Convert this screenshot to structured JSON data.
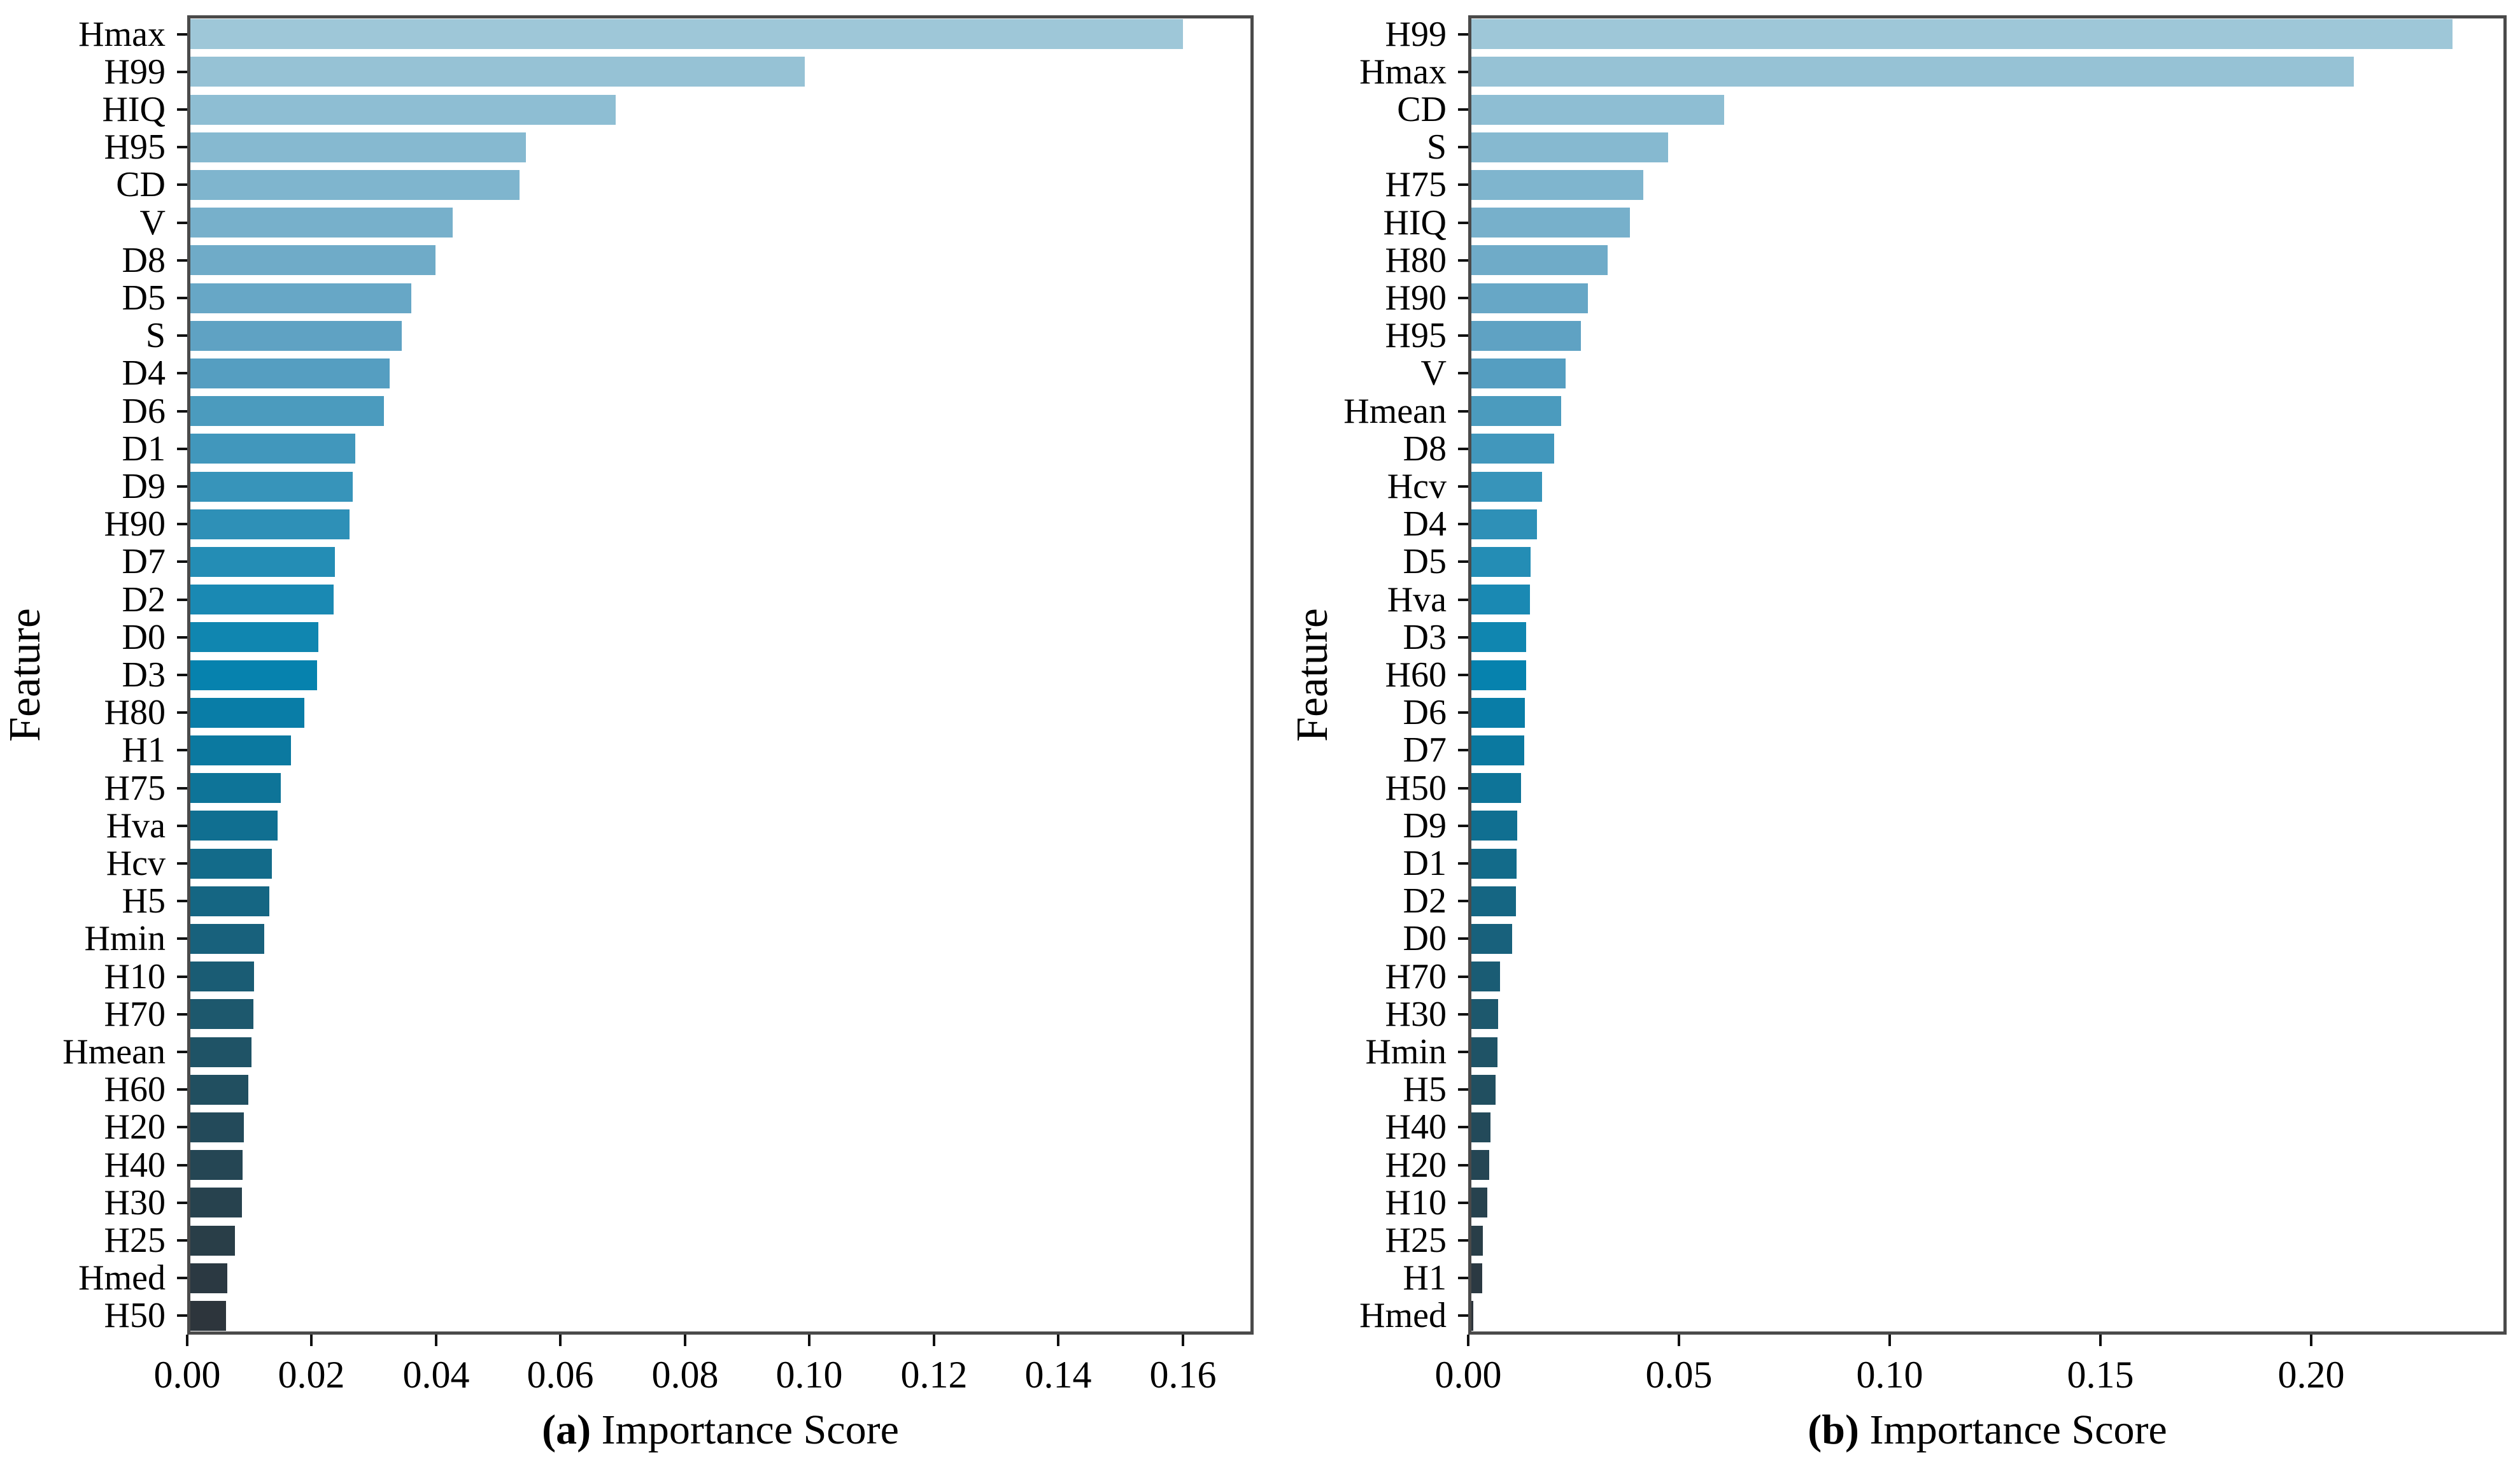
{
  "figure": {
    "background": "#ffffff",
    "spine_color": "#4a4a4a",
    "tick_color": "#111111",
    "text_color": "#000000",
    "bar_palette_anchors": [
      {
        "rank": 0,
        "color": "#9ec7d8"
      },
      {
        "rank": 8,
        "color": "#5fa2c3"
      },
      {
        "rank": 17,
        "color": "#0682ae"
      },
      {
        "rank": 27,
        "color": "#1f5366"
      },
      {
        "rank": 34,
        "color": "#2d353c"
      }
    ]
  },
  "chart_data": [
    {
      "type": "bar",
      "orientation": "horizontal",
      "panel_label": "(a)",
      "xlabel": "Importance Score",
      "ylabel": "Feature",
      "grid": false,
      "legend": null,
      "xlim": [
        0,
        0.1714
      ],
      "x_ticks": [
        0,
        0.02,
        0.04,
        0.06,
        0.08,
        0.1,
        0.12,
        0.14,
        0.16
      ],
      "x_tick_labels": [
        "0.00",
        "0.02",
        "0.04",
        "0.06",
        "0.08",
        "0.10",
        "0.12",
        "0.14",
        "0.16"
      ],
      "categories": [
        "Hmax",
        "H99",
        "HIQ",
        "H95",
        "CD",
        "V",
        "D8",
        "D5",
        "S",
        "D4",
        "D6",
        "D1",
        "D9",
        "H90",
        "D7",
        "D2",
        "D0",
        "D3",
        "H80",
        "H1",
        "H75",
        "Hva",
        "Hcv",
        "H5",
        "Hmin",
        "H10",
        "H70",
        "Hmean",
        "H60",
        "H20",
        "H40",
        "H30",
        "H25",
        "Hmed",
        "H50"
      ],
      "values": [
        0.1605,
        0.0993,
        0.0688,
        0.0542,
        0.0532,
        0.0424,
        0.0396,
        0.0357,
        0.0342,
        0.0322,
        0.0313,
        0.0267,
        0.0263,
        0.0257,
        0.0234,
        0.0232,
        0.0207,
        0.0205,
        0.0184,
        0.0163,
        0.0146,
        0.0141,
        0.0132,
        0.0128,
        0.0119,
        0.0103,
        0.0102,
        0.0099,
        0.0094,
        0.0086,
        0.0084,
        0.0083,
        0.0072,
        0.006,
        0.0058
      ]
    },
    {
      "type": "bar",
      "orientation": "horizontal",
      "panel_label": "(b)",
      "xlabel": "Importance Score",
      "ylabel": "Feature",
      "grid": false,
      "legend": null,
      "xlim": [
        0,
        0.2464
      ],
      "x_ticks": [
        0,
        0.05,
        0.1,
        0.15,
        0.2
      ],
      "x_tick_labels": [
        "0.00",
        "0.05",
        "0.10",
        "0.15",
        "0.20"
      ],
      "categories": [
        "H99",
        "Hmax",
        "CD",
        "S",
        "H75",
        "HIQ",
        "H80",
        "H90",
        "H95",
        "V",
        "Hmean",
        "D8",
        "Hcv",
        "D4",
        "D5",
        "Hva",
        "D3",
        "H60",
        "D6",
        "D7",
        "H50",
        "D9",
        "D1",
        "D2",
        "D0",
        "H70",
        "H30",
        "Hmin",
        "H5",
        "H40",
        "H20",
        "H10",
        "H25",
        "H1",
        "Hmed"
      ],
      "values": [
        0.2343,
        0.2107,
        0.0604,
        0.047,
        0.041,
        0.0379,
        0.0325,
        0.0278,
        0.0262,
        0.0225,
        0.0215,
        0.0197,
        0.0168,
        0.0157,
        0.0142,
        0.014,
        0.0131,
        0.013,
        0.0127,
        0.0126,
        0.0119,
        0.011,
        0.0108,
        0.0106,
        0.0097,
        0.0069,
        0.0064,
        0.0062,
        0.0058,
        0.0045,
        0.0042,
        0.0038,
        0.0028,
        0.0026,
        0.0004
      ]
    }
  ]
}
